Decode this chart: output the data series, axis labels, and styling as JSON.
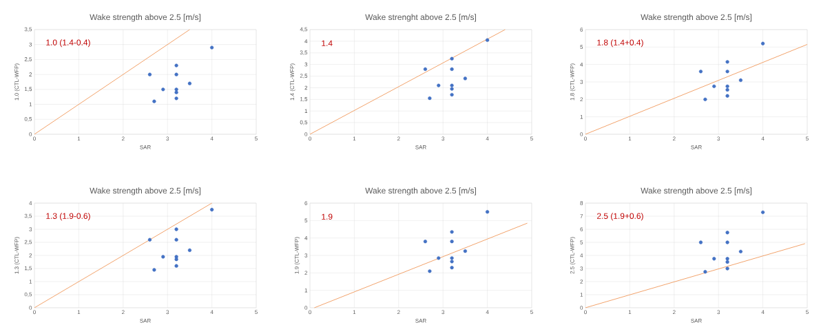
{
  "chart_data": [
    {
      "type": "scatter",
      "title": "Wake strength above 2.5 [m/s]",
      "xlabel": "SAR",
      "ylabel": "1.0 (CTL-WFP)",
      "annotations": [
        "1.0 (1.4-0.4)"
      ],
      "grid": true,
      "marker": "circle",
      "xlim": [
        0,
        5
      ],
      "xticks": [
        0,
        1,
        2,
        3,
        4,
        5
      ],
      "ylim": [
        0,
        3.5
      ],
      "yticks": [
        0,
        {
          "value": 0.5,
          "label": "0,5"
        },
        1,
        {
          "value": 1.5,
          "label": "1,5"
        },
        2,
        {
          "value": 2.5,
          "label": "2,5"
        },
        3,
        {
          "value": 3.5,
          "label": "3,5"
        }
      ],
      "x": [
        2.6,
        2.7,
        2.9,
        3.2,
        3.2,
        3.2,
        3.2,
        3.2,
        3.5,
        4.0
      ],
      "series": [
        {
          "color": "#4472c4",
          "values": [
            2.0,
            1.1,
            1.5,
            2.3,
            2.0,
            1.5,
            1.4,
            1.2,
            1.7,
            2.9
          ]
        },
        {
          "type": "line",
          "marker": "none",
          "color": "#f2a36b",
          "x": [
            0,
            3.5
          ],
          "values": [
            0,
            3.5
          ]
        }
      ]
    },
    {
      "type": "scatter",
      "title": "Wake strenght above 2.5 [m/s]",
      "xlabel": "SAR",
      "ylabel": "1.4 (CTL-WFP)",
      "annotations": [
        "1.4"
      ],
      "grid": true,
      "marker": "circle",
      "xlim": [
        0,
        5
      ],
      "xticks": [
        0,
        1,
        2,
        3,
        4,
        5
      ],
      "ylim": [
        0,
        4.5
      ],
      "yticks": [
        0,
        {
          "value": 0.5,
          "label": "0,5"
        },
        1,
        {
          "value": 1.5,
          "label": "1,5"
        },
        2,
        {
          "value": 2.5,
          "label": "2,5"
        },
        3,
        {
          "value": 3.5,
          "label": "3,5"
        },
        4,
        {
          "value": 4.5,
          "label": "4,5"
        }
      ],
      "x": [
        2.6,
        2.7,
        2.9,
        3.2,
        3.2,
        3.2,
        3.2,
        3.2,
        3.5,
        4.0
      ],
      "series": [
        {
          "color": "#4472c4",
          "values": [
            2.8,
            1.55,
            2.1,
            3.25,
            2.8,
            2.1,
            1.95,
            1.7,
            2.4,
            4.05
          ]
        },
        {
          "type": "line",
          "marker": "none",
          "color": "#f2a36b",
          "x": [
            0,
            4.4
          ],
          "values": [
            0,
            4.5
          ]
        }
      ]
    },
    {
      "type": "scatter",
      "title": "Wake strength above 2.5 [m/s]",
      "xlabel": "SAR",
      "ylabel": "1.8 (CTL-WFP)",
      "annotations": [
        "1.8 (1.4+0.4)"
      ],
      "grid": true,
      "marker": "circle",
      "xlim": [
        0,
        5
      ],
      "xticks": [
        0,
        1,
        2,
        3,
        4,
        5
      ],
      "ylim": [
        0,
        6
      ],
      "yticks": [
        0,
        1,
        2,
        3,
        4,
        5,
        6
      ],
      "x": [
        2.6,
        2.7,
        2.9,
        3.2,
        3.2,
        3.2,
        3.2,
        3.2,
        3.5,
        4.0
      ],
      "series": [
        {
          "color": "#4472c4",
          "values": [
            3.6,
            2.0,
            2.75,
            4.15,
            3.6,
            2.75,
            2.55,
            2.2,
            3.1,
            5.2
          ]
        },
        {
          "type": "line",
          "marker": "none",
          "color": "#f2a36b",
          "x": [
            0,
            5
          ],
          "values": [
            0,
            5.15
          ]
        }
      ]
    },
    {
      "type": "scatter",
      "title": "Wake strength above 2.5 [m/s]",
      "xlabel": "SAR",
      "ylabel": "1.3 (CTL-WFP)",
      "annotations": [
        "1.3 (1.9-0.6)"
      ],
      "grid": true,
      "marker": "circle",
      "xlim": [
        0,
        5
      ],
      "xticks": [
        0,
        1,
        2,
        3,
        4,
        5
      ],
      "ylim": [
        0,
        4
      ],
      "yticks": [
        0,
        {
          "value": 0.5,
          "label": "0,5"
        },
        1,
        {
          "value": 1.5,
          "label": "1,5"
        },
        2,
        {
          "value": 2.5,
          "label": "2,5"
        },
        3,
        {
          "value": 3.5,
          "label": "3,5"
        },
        4
      ],
      "x": [
        2.6,
        2.7,
        2.9,
        3.2,
        3.2,
        3.2,
        3.2,
        3.2,
        3.5,
        4.0
      ],
      "series": [
        {
          "color": "#4472c4",
          "values": [
            2.6,
            1.45,
            1.95,
            3.0,
            2.6,
            1.95,
            1.85,
            1.6,
            2.2,
            3.75
          ]
        },
        {
          "type": "line",
          "marker": "none",
          "color": "#f2a36b",
          "x": [
            0,
            4
          ],
          "values": [
            0,
            4
          ]
        }
      ]
    },
    {
      "type": "scatter",
      "title": "Wake strength above 2.5 [m/s]",
      "xlabel": "SAR",
      "ylabel": "1.9 (CTL-WFP)",
      "annotations": [
        "1.9"
      ],
      "grid": true,
      "marker": "circle",
      "xlim": [
        0,
        5
      ],
      "xticks": [
        0,
        1,
        2,
        3,
        4,
        5
      ],
      "ylim": [
        0,
        6
      ],
      "yticks": [
        0,
        1,
        2,
        3,
        4,
        5,
        6
      ],
      "x": [
        2.6,
        2.7,
        2.9,
        3.2,
        3.2,
        3.2,
        3.2,
        3.2,
        3.5,
        4.0
      ],
      "series": [
        {
          "color": "#4472c4",
          "values": [
            3.8,
            2.1,
            2.85,
            4.35,
            3.8,
            2.85,
            2.65,
            2.3,
            3.25,
            5.5
          ]
        },
        {
          "type": "line",
          "marker": "none",
          "color": "#f2a36b",
          "x": [
            0.1,
            4.9
          ],
          "values": [
            0,
            4.85
          ]
        }
      ]
    },
    {
      "type": "scatter",
      "title": "Wake strength above 2.5 [m/s]",
      "xlabel": "SAR",
      "ylabel": "2.5 (CTL-WFP)",
      "annotations": [
        "2.5 (1.9+0.6)"
      ],
      "grid": true,
      "marker": "circle",
      "xlim": [
        0,
        5
      ],
      "xticks": [
        0,
        1,
        2,
        3,
        4,
        5
      ],
      "ylim": [
        0,
        8
      ],
      "yticks": [
        0,
        1,
        2,
        3,
        4,
        5,
        6,
        7,
        8
      ],
      "x": [
        2.6,
        2.7,
        2.9,
        3.2,
        3.2,
        3.2,
        3.2,
        3.2,
        3.5,
        4.0
      ],
      "series": [
        {
          "color": "#4472c4",
          "values": [
            5.0,
            2.75,
            3.75,
            5.75,
            5.0,
            3.75,
            3.5,
            3.0,
            4.3,
            7.3
          ]
        },
        {
          "type": "line",
          "marker": "none",
          "color": "#f2a36b",
          "x": [
            0,
            4.95
          ],
          "values": [
            0,
            4.9
          ]
        }
      ]
    }
  ]
}
